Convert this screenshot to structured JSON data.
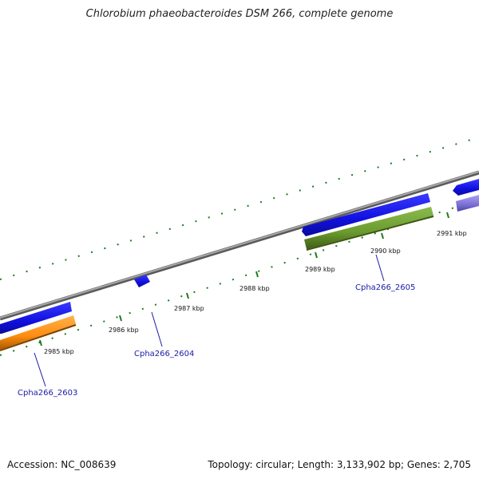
{
  "title": "Chlorobium phaeobacteroides DSM 266, complete genome",
  "footer": {
    "accession": "Accession: NC_008639",
    "summary": "Topology: circular; Length: 3,133,902 bp; Genes: 2,705"
  },
  "colors": {
    "backbone": "#888888",
    "tick": "#1e7a1e",
    "gene_blue": "#1010e0",
    "gene_orange": "#ff8c10",
    "gene_green": "#6b9a2e",
    "gene_purple": "#7b6fd6",
    "label": "#1a1aa6"
  },
  "kbp_labels": [
    "2985 kbp",
    "2986 kbp",
    "2987 kbp",
    "2988 kbp",
    "2989 kbp",
    "2990 kbp",
    "2991 kbp"
  ],
  "gene_labels": [
    "Cpha266_2603",
    "Cpha266_2604",
    "Cpha266_2605"
  ]
}
